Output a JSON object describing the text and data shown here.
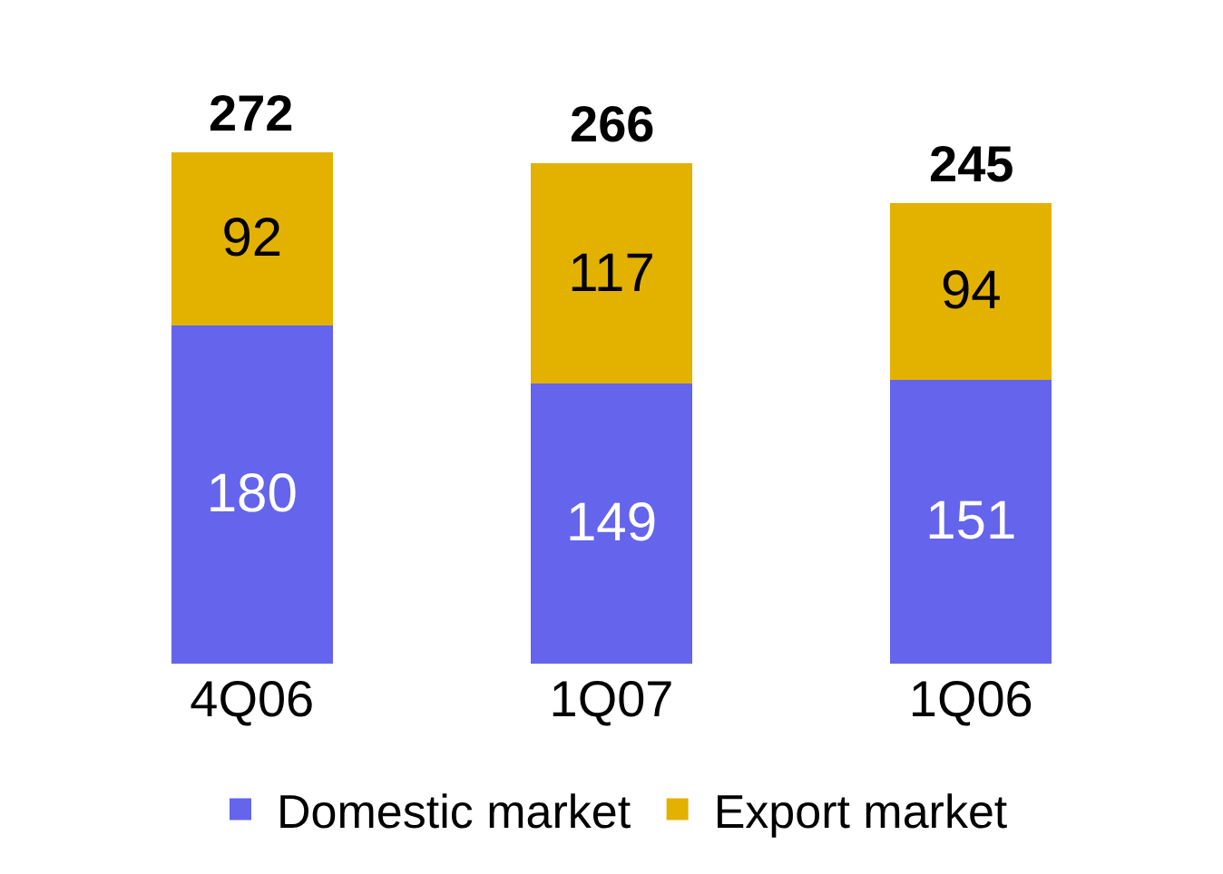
{
  "chart_data": {
    "type": "bar",
    "stacked": true,
    "categories": [
      "4Q06",
      "1Q07",
      "1Q06"
    ],
    "series": [
      {
        "name": "Domestic market",
        "color": "#6464ec",
        "values": [
          180,
          149,
          151
        ]
      },
      {
        "name": "Export market",
        "color": "#e3b100",
        "values": [
          92,
          117,
          94
        ]
      }
    ],
    "data_labels": true,
    "totals": [
      "272",
      "266",
      "245"
    ],
    "legend": "bottom"
  }
}
